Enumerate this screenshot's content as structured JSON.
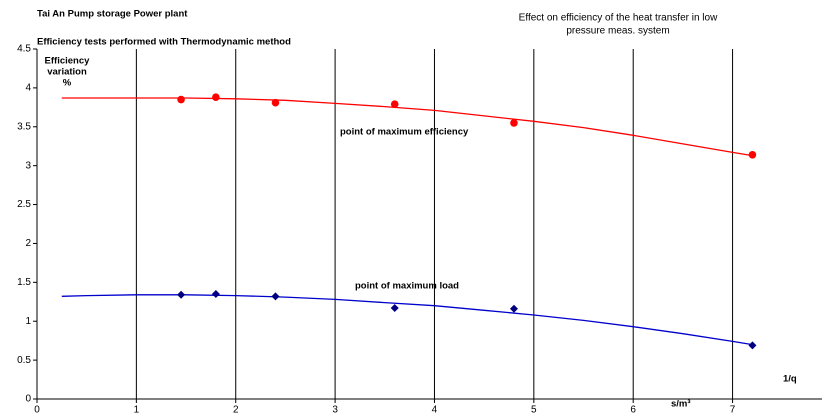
{
  "chart_data": {
    "type": "scatter",
    "title": "Tai An  Pump storage Power plant",
    "subtitle": "Efficiency tests performed with Thermodynamic method",
    "right_title": [
      "Effect on efficiency of the heat transfer in low",
      "pressure meas. system"
    ],
    "y_label": [
      "Efficiency",
      "variation",
      "%"
    ],
    "x_label": "1/q",
    "x_unit": "s/m³",
    "annotations": [
      "point of maximum efficiency",
      "point of maximum load"
    ],
    "xlim": [
      0,
      7.9
    ],
    "xticks": [
      0,
      1,
      2,
      3,
      4,
      5,
      6,
      7
    ],
    "ylim": [
      0,
      4.5
    ],
    "yticks": [
      0,
      0.5,
      1,
      1.5,
      2,
      2.5,
      3,
      3.5,
      4,
      4.5
    ],
    "grid": "x",
    "series": [
      {
        "color": "#ff0000",
        "marker": "circle",
        "x": [
          1.45,
          1.8,
          2.4,
          3.6,
          4.8,
          7.2
        ],
        "values": [
          3.85,
          3.88,
          3.81,
          3.79,
          3.55,
          3.14
        ],
        "curve": {
          "x": [
            0.25,
            1,
            1.5,
            2,
            2.5,
            3,
            3.5,
            4,
            4.5,
            5,
            5.5,
            6,
            6.5,
            7,
            7.2
          ],
          "values": [
            3.87,
            3.87,
            3.87,
            3.86,
            3.84,
            3.8,
            3.76,
            3.71,
            3.64,
            3.57,
            3.49,
            3.39,
            3.28,
            3.17,
            3.13
          ]
        }
      },
      {
        "color": "#000080",
        "marker": "diamond",
        "line_color": "#0000cc",
        "x": [
          1.45,
          1.8,
          2.4,
          3.6,
          4.8,
          7.2
        ],
        "values": [
          1.34,
          1.35,
          1.32,
          1.17,
          1.16,
          0.69
        ],
        "curve": {
          "x": [
            0.25,
            0.5,
            1,
            1.5,
            2,
            2.5,
            3,
            3.5,
            4,
            4.5,
            5,
            5.5,
            6,
            6.5,
            7,
            7.2
          ],
          "values": [
            1.32,
            1.33,
            1.34,
            1.34,
            1.33,
            1.31,
            1.28,
            1.24,
            1.2,
            1.14,
            1.08,
            1.01,
            0.93,
            0.84,
            0.74,
            0.7
          ]
        }
      }
    ]
  }
}
